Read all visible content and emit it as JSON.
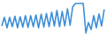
{
  "chart_data": {
    "type": "line",
    "values": [
      30,
      55,
      25,
      55,
      28,
      58,
      25,
      57,
      27,
      60,
      26,
      60,
      28,
      62,
      25,
      64,
      27,
      66,
      28,
      70,
      30,
      75,
      28,
      72,
      30,
      80,
      32,
      85,
      95,
      95,
      95,
      95,
      10,
      40,
      20,
      60,
      25,
      65,
      30,
      78
    ],
    "color": "#3d8ed8",
    "ylim": [
      0,
      100
    ],
    "tick_labels": false,
    "grid": false
  }
}
